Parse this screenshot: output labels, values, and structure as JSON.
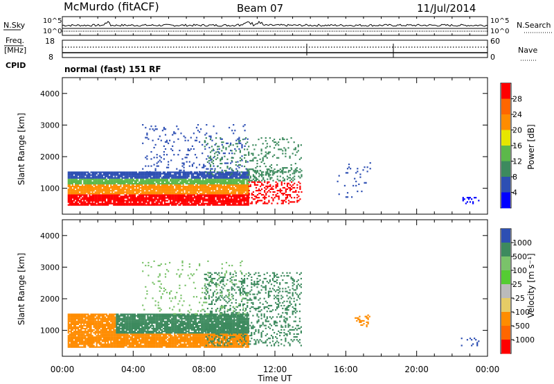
{
  "header": {
    "station": "McMurdo (fitACF)",
    "beam": "Beam 07",
    "date": "11/Jul/2014"
  },
  "noise_panel": {
    "left_label": "N.Sky",
    "right_label": "N.Search",
    "left_ticks": [
      "10^5",
      "10^0"
    ],
    "right_ticks": [
      "10^5",
      "10^0"
    ]
  },
  "freq_panel": {
    "left_label": "Freq.",
    "left_unit": "[MHz]",
    "right_label": "Nave",
    "left_ticks": [
      "18",
      "8"
    ],
    "right_ticks": [
      "60",
      "0"
    ],
    "cpid_label": "CPID",
    "cpid_text": "normal (fast) 151 RF"
  },
  "colors": {
    "power": [
      "#0000ff",
      "#2d4fb3",
      "#3d8a5e",
      "#5cb84a",
      "#e6e600",
      "#ff8c00",
      "#ff6600",
      "#ff0000"
    ],
    "velocity": [
      "#2d4fb3",
      "#3d8a5e",
      "#7ac26a",
      "#55cc33",
      "#bbbbbb",
      "#e6cc66",
      "#ff8c00",
      "#ff6600",
      "#ff0000"
    ]
  },
  "chart_data": [
    {
      "type": "heatmap",
      "title": "",
      "xlabel": "",
      "ylabel": "Slant Range [km]",
      "ylim": [
        180,
        4500
      ],
      "xlim": [
        "00:00",
        "24:00"
      ],
      "yticks": [
        "1000",
        "2000",
        "3000",
        "4000"
      ],
      "colorbar": {
        "label": "Power [dB]",
        "ticks": [
          "4",
          "8",
          "12",
          "16",
          "20",
          "24",
          "28"
        ],
        "range": [
          0,
          32
        ]
      }
    },
    {
      "type": "heatmap",
      "title": "",
      "xlabel": "Time UT",
      "ylabel": "Slant Range [km]",
      "ylim": [
        180,
        4500
      ],
      "xlim": [
        "00:00",
        "24:00"
      ],
      "xticks": [
        "00:00",
        "04:00",
        "08:00",
        "12:00",
        "16:00",
        "20:00",
        "00:00"
      ],
      "yticks": [
        "1000",
        "2000",
        "3000",
        "4000"
      ],
      "colorbar": {
        "label": "Velocity [m s⁻¹]",
        "ticks": [
          "1000",
          "500",
          "100",
          "25",
          "-25",
          "-100",
          "-500",
          "-1000"
        ]
      }
    }
  ]
}
